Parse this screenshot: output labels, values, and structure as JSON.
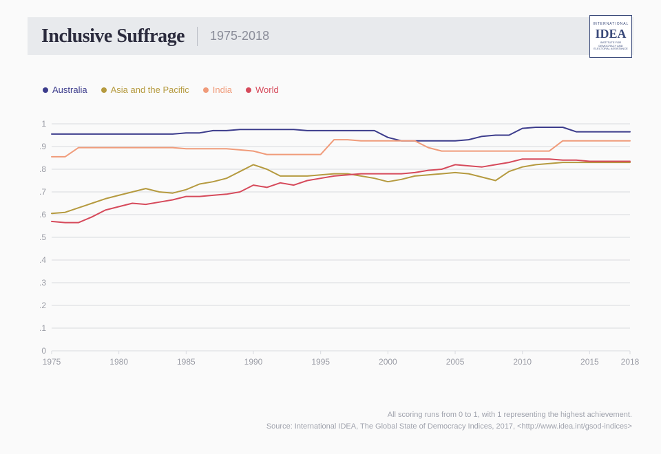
{
  "header": {
    "title": "Inclusive Suffrage",
    "subtitle": "1975-2018"
  },
  "logo": {
    "top_text": "INTERNATIONAL",
    "main_text": "IDEA",
    "bottom_text": "INSTITUTE FOR DEMOCRACY AND ELECTORAL ASSISTANCE"
  },
  "chart": {
    "type": "line",
    "background_color": "#fafafa",
    "grid_color": "#d8dadf",
    "axis_text_color": "#9a9ca5",
    "axis_fontsize": 12,
    "ylim": [
      0,
      1
    ],
    "yticks": [
      0,
      0.1,
      0.2,
      0.3,
      0.4,
      0.5,
      0.6,
      0.7,
      0.8,
      0.9,
      1
    ],
    "ytick_labels": [
      "0",
      ".1",
      ".2",
      ".3",
      ".4",
      ".5",
      ".6",
      ".7",
      ".8",
      ".9",
      "1"
    ],
    "xlim": [
      1975,
      2018
    ],
    "xticks": [
      1975,
      1980,
      1985,
      1990,
      1995,
      2000,
      2005,
      2010,
      2015,
      2018
    ],
    "xtick_labels": [
      "1975",
      "1980",
      "1985",
      "1990",
      "1995",
      "2000",
      "2005",
      "2010",
      "2015",
      "2018"
    ],
    "line_width": 2,
    "series": [
      {
        "name": "Australia",
        "color": "#3c3c8c",
        "data": [
          [
            1975,
            0.955
          ],
          [
            1976,
            0.955
          ],
          [
            1977,
            0.955
          ],
          [
            1978,
            0.955
          ],
          [
            1979,
            0.955
          ],
          [
            1980,
            0.955
          ],
          [
            1981,
            0.955
          ],
          [
            1982,
            0.955
          ],
          [
            1983,
            0.955
          ],
          [
            1984,
            0.955
          ],
          [
            1985,
            0.96
          ],
          [
            1986,
            0.96
          ],
          [
            1987,
            0.97
          ],
          [
            1988,
            0.97
          ],
          [
            1989,
            0.975
          ],
          [
            1990,
            0.975
          ],
          [
            1991,
            0.975
          ],
          [
            1992,
            0.975
          ],
          [
            1993,
            0.975
          ],
          [
            1994,
            0.97
          ],
          [
            1995,
            0.97
          ],
          [
            1996,
            0.97
          ],
          [
            1997,
            0.97
          ],
          [
            1998,
            0.97
          ],
          [
            1999,
            0.97
          ],
          [
            2000,
            0.94
          ],
          [
            2001,
            0.925
          ],
          [
            2002,
            0.925
          ],
          [
            2003,
            0.925
          ],
          [
            2004,
            0.925
          ],
          [
            2005,
            0.925
          ],
          [
            2006,
            0.93
          ],
          [
            2007,
            0.945
          ],
          [
            2008,
            0.95
          ],
          [
            2009,
            0.95
          ],
          [
            2010,
            0.98
          ],
          [
            2011,
            0.985
          ],
          [
            2012,
            0.985
          ],
          [
            2013,
            0.985
          ],
          [
            2014,
            0.965
          ],
          [
            2015,
            0.965
          ],
          [
            2016,
            0.965
          ],
          [
            2017,
            0.965
          ],
          [
            2018,
            0.965
          ]
        ]
      },
      {
        "name": "Asia and the Pacific",
        "color": "#b59a3f",
        "data": [
          [
            1975,
            0.605
          ],
          [
            1976,
            0.61
          ],
          [
            1977,
            0.63
          ],
          [
            1978,
            0.65
          ],
          [
            1979,
            0.67
          ],
          [
            1980,
            0.685
          ],
          [
            1981,
            0.7
          ],
          [
            1982,
            0.715
          ],
          [
            1983,
            0.7
          ],
          [
            1984,
            0.695
          ],
          [
            1985,
            0.71
          ],
          [
            1986,
            0.735
          ],
          [
            1987,
            0.745
          ],
          [
            1988,
            0.76
          ],
          [
            1989,
            0.79
          ],
          [
            1990,
            0.82
          ],
          [
            1991,
            0.8
          ],
          [
            1992,
            0.77
          ],
          [
            1993,
            0.77
          ],
          [
            1994,
            0.77
          ],
          [
            1995,
            0.775
          ],
          [
            1996,
            0.78
          ],
          [
            1997,
            0.78
          ],
          [
            1998,
            0.77
          ],
          [
            1999,
            0.76
          ],
          [
            2000,
            0.745
          ],
          [
            2001,
            0.755
          ],
          [
            2002,
            0.77
          ],
          [
            2003,
            0.775
          ],
          [
            2004,
            0.78
          ],
          [
            2005,
            0.785
          ],
          [
            2006,
            0.78
          ],
          [
            2007,
            0.765
          ],
          [
            2008,
            0.75
          ],
          [
            2009,
            0.79
          ],
          [
            2010,
            0.81
          ],
          [
            2011,
            0.82
          ],
          [
            2012,
            0.825
          ],
          [
            2013,
            0.83
          ],
          [
            2014,
            0.83
          ],
          [
            2015,
            0.83
          ],
          [
            2016,
            0.83
          ],
          [
            2017,
            0.83
          ],
          [
            2018,
            0.83
          ]
        ]
      },
      {
        "name": "India",
        "color": "#f09b7a",
        "data": [
          [
            1975,
            0.855
          ],
          [
            1976,
            0.855
          ],
          [
            1977,
            0.895
          ],
          [
            1978,
            0.895
          ],
          [
            1979,
            0.895
          ],
          [
            1980,
            0.895
          ],
          [
            1981,
            0.895
          ],
          [
            1982,
            0.895
          ],
          [
            1983,
            0.895
          ],
          [
            1984,
            0.895
          ],
          [
            1985,
            0.89
          ],
          [
            1986,
            0.89
          ],
          [
            1987,
            0.89
          ],
          [
            1988,
            0.89
          ],
          [
            1989,
            0.885
          ],
          [
            1990,
            0.88
          ],
          [
            1991,
            0.865
          ],
          [
            1992,
            0.865
          ],
          [
            1993,
            0.865
          ],
          [
            1994,
            0.865
          ],
          [
            1995,
            0.865
          ],
          [
            1996,
            0.93
          ],
          [
            1997,
            0.93
          ],
          [
            1998,
            0.925
          ],
          [
            1999,
            0.925
          ],
          [
            2000,
            0.925
          ],
          [
            2001,
            0.925
          ],
          [
            2002,
            0.925
          ],
          [
            2003,
            0.895
          ],
          [
            2004,
            0.88
          ],
          [
            2005,
            0.88
          ],
          [
            2006,
            0.88
          ],
          [
            2007,
            0.88
          ],
          [
            2008,
            0.88
          ],
          [
            2009,
            0.88
          ],
          [
            2010,
            0.88
          ],
          [
            2011,
            0.88
          ],
          [
            2012,
            0.88
          ],
          [
            2013,
            0.925
          ],
          [
            2014,
            0.925
          ],
          [
            2015,
            0.925
          ],
          [
            2016,
            0.925
          ],
          [
            2017,
            0.925
          ],
          [
            2018,
            0.925
          ]
        ]
      },
      {
        "name": "World",
        "color": "#d64a5b",
        "data": [
          [
            1975,
            0.57
          ],
          [
            1976,
            0.565
          ],
          [
            1977,
            0.565
          ],
          [
            1978,
            0.59
          ],
          [
            1979,
            0.62
          ],
          [
            1980,
            0.635
          ],
          [
            1981,
            0.65
          ],
          [
            1982,
            0.645
          ],
          [
            1983,
            0.655
          ],
          [
            1984,
            0.665
          ],
          [
            1985,
            0.68
          ],
          [
            1986,
            0.68
          ],
          [
            1987,
            0.685
          ],
          [
            1988,
            0.69
          ],
          [
            1989,
            0.7
          ],
          [
            1990,
            0.73
          ],
          [
            1991,
            0.72
          ],
          [
            1992,
            0.74
          ],
          [
            1993,
            0.73
          ],
          [
            1994,
            0.75
          ],
          [
            1995,
            0.76
          ],
          [
            1996,
            0.77
          ],
          [
            1997,
            0.775
          ],
          [
            1998,
            0.78
          ],
          [
            1999,
            0.78
          ],
          [
            2000,
            0.78
          ],
          [
            2001,
            0.78
          ],
          [
            2002,
            0.785
          ],
          [
            2003,
            0.795
          ],
          [
            2004,
            0.8
          ],
          [
            2005,
            0.82
          ],
          [
            2006,
            0.815
          ],
          [
            2007,
            0.81
          ],
          [
            2008,
            0.82
          ],
          [
            2009,
            0.83
          ],
          [
            2010,
            0.845
          ],
          [
            2011,
            0.845
          ],
          [
            2012,
            0.845
          ],
          [
            2013,
            0.84
          ],
          [
            2014,
            0.84
          ],
          [
            2015,
            0.835
          ],
          [
            2016,
            0.835
          ],
          [
            2017,
            0.835
          ],
          [
            2018,
            0.835
          ]
        ]
      }
    ]
  },
  "footnotes": {
    "line1": "All scoring runs from 0 to 1, with 1 representing the highest achievement.",
    "line2": "Source: International IDEA, The Global State of Democracy Indices, 2017, <http://www.idea.int/gsod-indices>"
  }
}
